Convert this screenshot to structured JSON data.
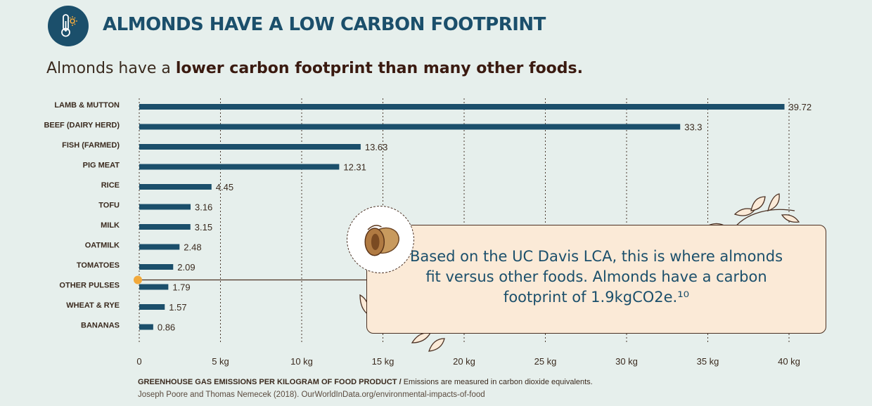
{
  "header": {
    "title": "ALMONDS HAVE A LOW CARBON FOOTPRINT",
    "subtitle_prefix": "Almonds have a",
    "subtitle_bold": "lower carbon footprint than many other foods.",
    "icon": "thermometer-sun-icon"
  },
  "callout": {
    "text": "Based on the UC Davis LCA, this is where almonds fit versus other foods. Almonds have a carbon footprint of 1.9kgCO2e.¹⁰",
    "image": "almond-icon"
  },
  "footer": {
    "axis_title_bold": "GREENHOUSE GAS EMISSIONS PER KILOGRAM OF FOOD PRODUCT /",
    "axis_title_rest": "Emissions are measured in carbon dioxide equivalents.",
    "source": "Joseph Poore and Thomas Nemecek (2018). OurWorldInData.org/environmental-impacts-of-food"
  },
  "colors": {
    "bar": "#1b4f6b",
    "marker": "#f2a93b",
    "text": "#3a2a1e",
    "background": "#e6efec",
    "callout_bg": "#fbead7"
  },
  "chart_data": {
    "type": "bar",
    "orientation": "horizontal",
    "categories": [
      "LAMB & MUTTON",
      "BEEF (DAIRY HERD)",
      "FISH (FARMED)",
      "PIG MEAT",
      "RICE",
      "TOFU",
      "MILK",
      "OATMILK",
      "TOMATOES",
      "OTHER PULSES",
      "WHEAT & RYE",
      "BANANAS"
    ],
    "values": [
      39.72,
      33.3,
      13.63,
      12.31,
      4.45,
      3.16,
      3.15,
      2.48,
      2.09,
      1.79,
      1.57,
      0.86
    ],
    "value_labels": [
      "39.72",
      "33.3",
      "13.63",
      "12.31",
      "4.45",
      "3.16",
      "3.15",
      "2.48",
      "2.09",
      "1.79",
      "1.57",
      "0.86"
    ],
    "xlim": [
      0,
      40
    ],
    "x_ticks": [
      0,
      5,
      10,
      15,
      20,
      25,
      30,
      35,
      40
    ],
    "x_tick_labels": [
      "0",
      "5 kg",
      "10 kg",
      "15 kg",
      "20 kg",
      "25 kg",
      "30 kg",
      "35 kg",
      "40 kg"
    ],
    "grid": "vertical-dotted",
    "highlight": {
      "label": "Almonds",
      "value": 1.9
    }
  }
}
